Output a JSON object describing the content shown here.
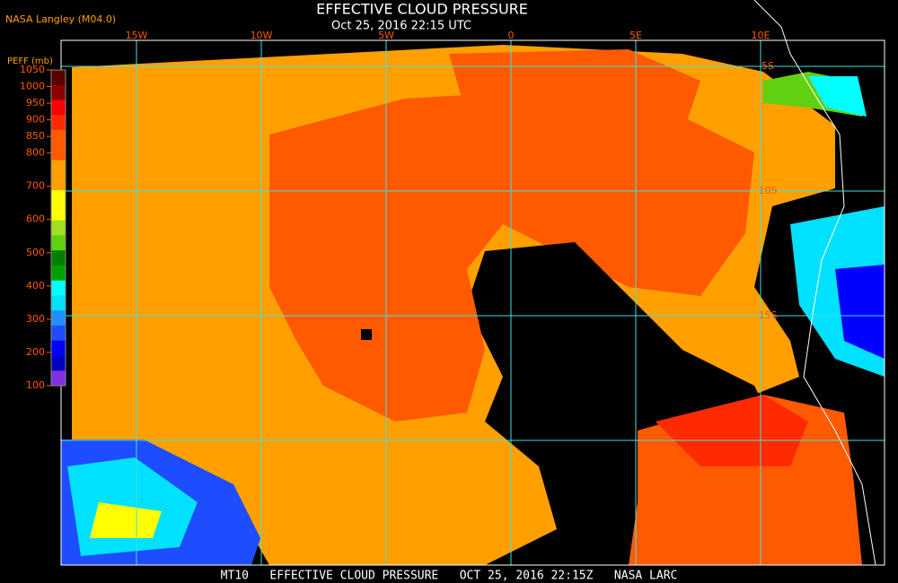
{
  "header": {
    "credit": "NASA Langley (M04.0)",
    "title": "EFFECTIVE CLOUD PRESSURE",
    "subtitle": "Oct 25, 2016 22:15 UTC"
  },
  "legend": {
    "title": "PEFF (mb)",
    "range": [
      100,
      1050
    ],
    "ticks": [
      1050,
      1000,
      950,
      900,
      850,
      800,
      700,
      600,
      500,
      400,
      300,
      200,
      100
    ],
    "colors": [
      "#5a0000",
      "#8b0000",
      "#ff0000",
      "#ff2a00",
      "#ff5a00",
      "#ff5a00",
      "#ffa000",
      "#ffa000",
      "#ffff00",
      "#ffff00",
      "#a0e020",
      "#60d010",
      "#008000",
      "#00a000",
      "#00ffff",
      "#00e0ff",
      "#2090ff",
      "#1e4dff",
      "#0000ff",
      "#0000c0",
      "#8030e0"
    ]
  },
  "grid": {
    "lon_labels": [
      "15W",
      "10W",
      "5W",
      "0",
      "5E",
      "10E"
    ],
    "lat_labels": [
      "5S",
      "10S",
      "15S"
    ]
  },
  "footer": "MT10   EFFECTIVE CLOUD PRESSURE   OCT 25, 2016 22:15Z   NASA LARC"
}
